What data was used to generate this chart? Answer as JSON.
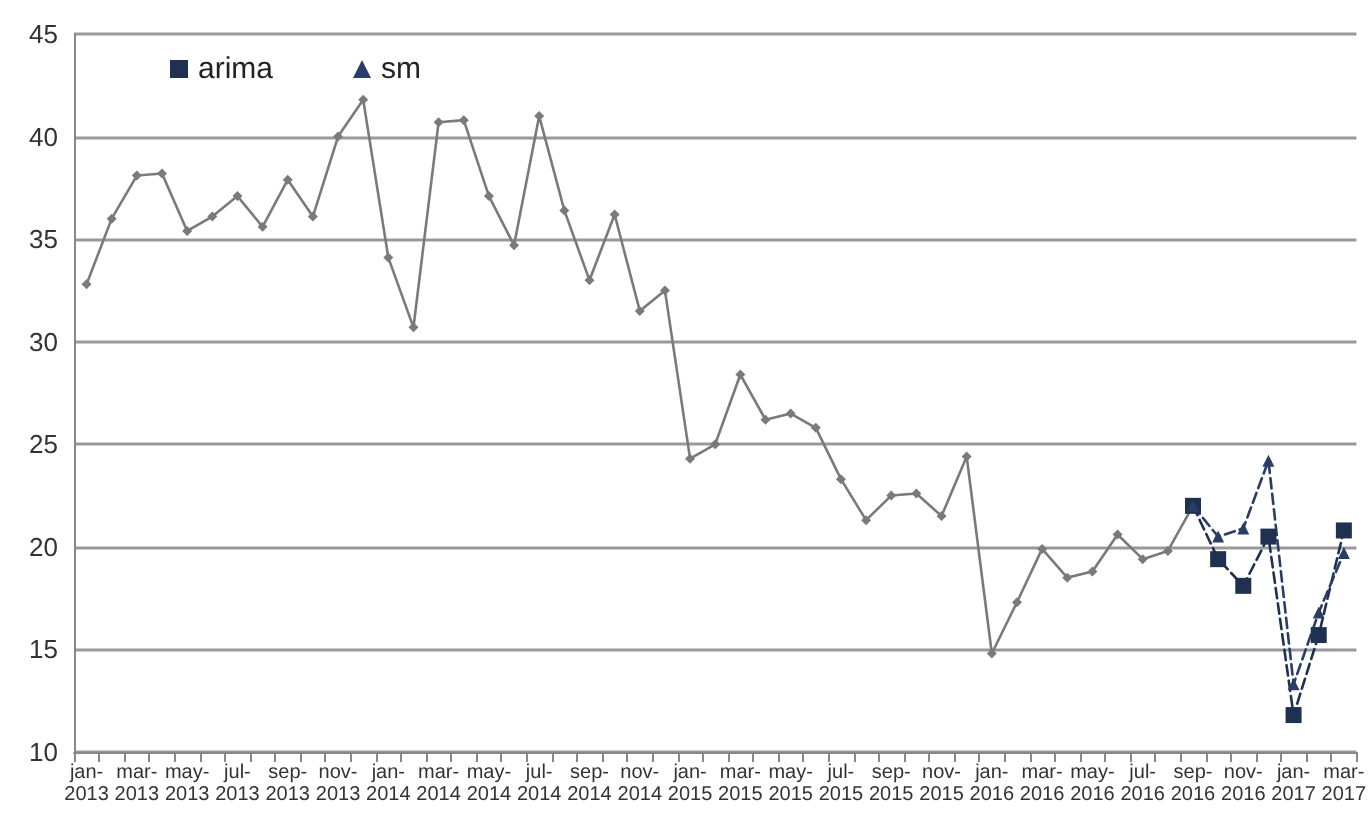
{
  "chart_data": {
    "type": "line",
    "categories": [
      "jan-\n2013",
      null,
      "mar-\n2013",
      null,
      "may-\n2013",
      null,
      "jul-\n2013",
      null,
      "sep-\n2013",
      null,
      "nov-\n2013",
      null,
      "jan-\n2014",
      null,
      "mar-\n2014",
      null,
      "may-\n2014",
      null,
      "jul-\n2014",
      null,
      "sep-\n2014",
      null,
      "nov-\n2014",
      null,
      "jan-\n2015",
      null,
      "mar-\n2015",
      null,
      "may-\n2015",
      null,
      "jul-\n2015",
      null,
      "sep-\n2015",
      null,
      "nov-\n2015",
      null,
      "jan-\n2016",
      null,
      "mar-\n2016",
      null,
      "may-\n2016",
      null,
      "jul-\n2016",
      null,
      "sep-\n2016",
      null,
      "nov-\n2016",
      null,
      "jan-\n2017",
      null,
      "mar-\n2017"
    ],
    "series": [
      {
        "name": "arima",
        "color": "#1f3050",
        "marker": "square",
        "line_style": "dashed",
        "values": [
          null,
          null,
          null,
          null,
          null,
          null,
          null,
          null,
          null,
          null,
          null,
          null,
          null,
          null,
          null,
          null,
          null,
          null,
          null,
          null,
          null,
          null,
          null,
          null,
          null,
          null,
          null,
          null,
          null,
          null,
          null,
          null,
          null,
          null,
          null,
          null,
          null,
          null,
          null,
          null,
          null,
          null,
          null,
          null,
          22.0,
          19.4,
          18.1,
          20.5,
          11.8,
          15.7,
          20.8
        ]
      },
      {
        "name": "sm",
        "color": "#2a3d66",
        "marker": "triangle",
        "line_style": "dashed",
        "values": [
          null,
          null,
          null,
          null,
          null,
          null,
          null,
          null,
          null,
          null,
          null,
          null,
          null,
          null,
          null,
          null,
          null,
          null,
          null,
          null,
          null,
          null,
          null,
          null,
          null,
          null,
          null,
          null,
          null,
          null,
          null,
          null,
          null,
          null,
          null,
          null,
          null,
          null,
          null,
          null,
          null,
          null,
          null,
          null,
          22.0,
          20.5,
          20.9,
          24.2,
          13.3,
          16.8,
          19.7
        ]
      },
      {
        "color": "#7a7a7a",
        "marker": "diamond",
        "line_style": "solid",
        "values": [
          32.8,
          36.0,
          38.1,
          38.2,
          35.4,
          36.1,
          37.1,
          35.6,
          37.9,
          36.1,
          40.0,
          41.8,
          34.1,
          30.7,
          40.7,
          40.8,
          37.1,
          34.7,
          41.0,
          36.4,
          33.0,
          36.2,
          31.5,
          32.5,
          24.3,
          25.0,
          28.4,
          26.2,
          26.5,
          25.8,
          23.3,
          21.3,
          22.5,
          22.6,
          21.5,
          24.4,
          14.8,
          17.3,
          19.9,
          18.5,
          18.8,
          20.6,
          19.4,
          19.8,
          22.0,
          null,
          null,
          null,
          null,
          null,
          null
        ]
      }
    ],
    "ylim": [
      10,
      45
    ],
    "yticks": [
      10,
      15,
      20,
      25,
      30,
      35,
      40,
      45
    ],
    "grid": "y",
    "legend": "top left"
  }
}
